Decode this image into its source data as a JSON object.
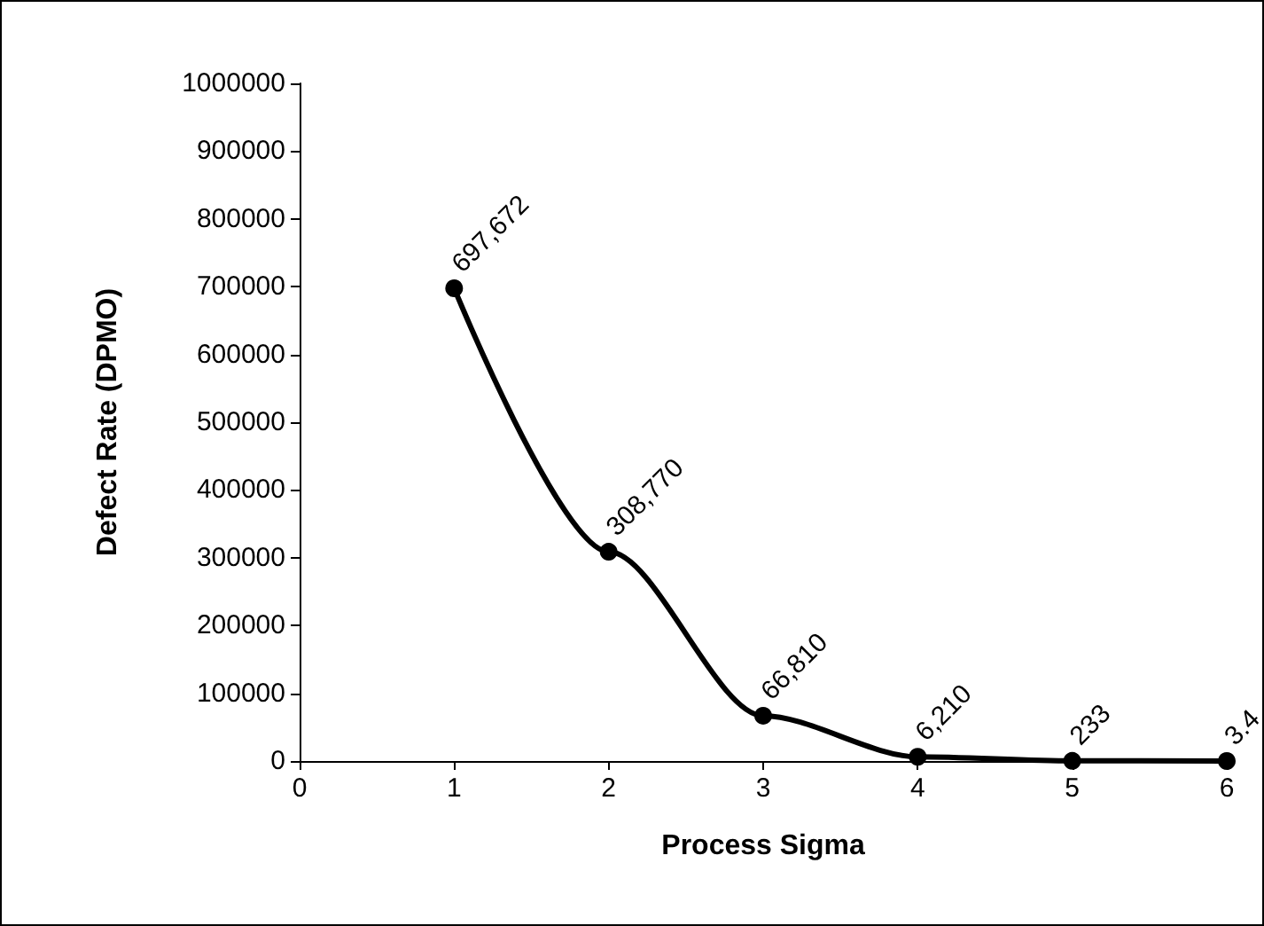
{
  "chart_data": {
    "type": "line",
    "xlabel": "Process Sigma",
    "ylabel": "Defect Rate (DPMO)",
    "x": [
      1,
      2,
      3,
      4,
      5,
      6
    ],
    "series": [
      {
        "color": "#000000",
        "values": [
          697672,
          308770,
          66810,
          6210,
          233,
          3.4
        ],
        "value_labels": [
          "697,672",
          "308,770",
          "66,810",
          "6,210",
          "233",
          "3.4"
        ]
      }
    ],
    "xlim": [
      0,
      6
    ],
    "xticks": [
      0,
      1,
      2,
      3,
      4,
      5,
      6
    ],
    "ylim": [
      0,
      1000000
    ],
    "yticks": [
      0,
      100000,
      200000,
      300000,
      400000,
      500000,
      600000,
      700000,
      800000,
      900000,
      1000000
    ],
    "marker": "circle",
    "line_style": "solid"
  }
}
